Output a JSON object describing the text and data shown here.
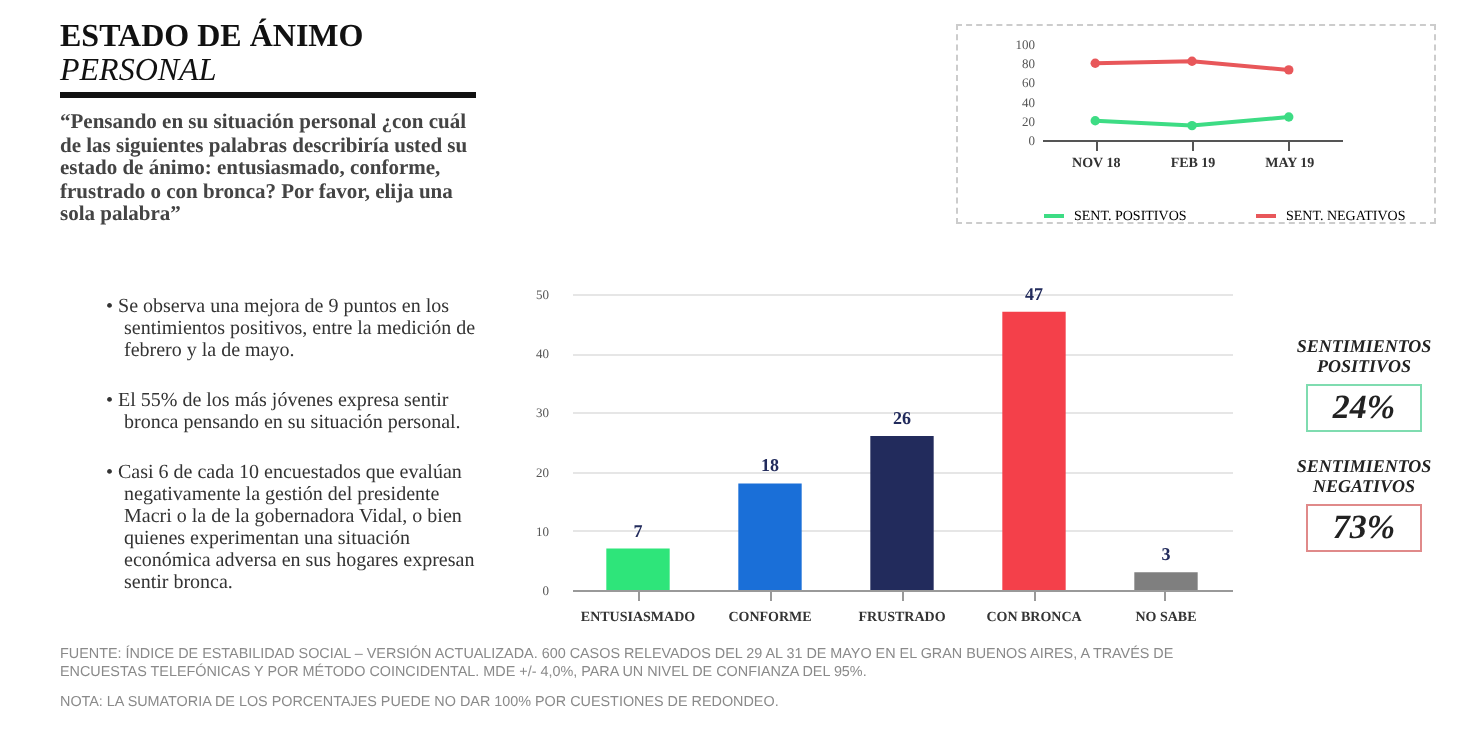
{
  "chart_data": [
    {
      "type": "other",
      "title": "ESTADO DE ÁNIMO",
      "subtitle": "PERSONAL",
      "annotations": [
        "“Pensando en su situación personal ¿con cuál de las siguientes palabras describiría usted su estado de ánimo: entusiasmado, conforme, frustrado o con bronca? Por favor, elija una sola palabra”",
        "• Se observa una mejora de 9 puntos en los sentimientos positivos, entre la medición de febrero y la de mayo.",
        "• El 55% de los más jóvenes expresa sentir bronca pensando en su situación personal.",
        "• Casi 6 de cada 10 encuestados que evalúan negativamente la gestión del presidente Macri o la de la gobernadora Vidal, o bien quienes experimentan una situación económica adversa en sus hogares expresan sentir bronca."
      ]
    },
    {
      "type": "line",
      "categories": [
        "NOV 18",
        "FEB 19",
        "MAY 19"
      ],
      "ylim": [
        0,
        100
      ],
      "yticks": [
        0,
        20,
        40,
        60,
        80,
        100
      ],
      "legend": "bottom",
      "marker": "circle",
      "series": [
        {
          "name": "SENT. POSITIVOS",
          "color": "#3ddc84",
          "values": [
            20,
            15,
            24
          ]
        },
        {
          "name": "SENT. NEGATIVOS",
          "color": "#e8575a",
          "values": [
            80,
            82,
            73
          ]
        }
      ]
    },
    {
      "type": "bar",
      "categories": [
        "ENTUSIASMADO",
        "CONFORME",
        "FRUSTRADO",
        "CON BRONCA",
        "NO SABE"
      ],
      "values": [
        7,
        18,
        26,
        47,
        3
      ],
      "colors": [
        "#2ee57a",
        "#1a6fd8",
        "#222b5c",
        "#f4404a",
        "#7f7f7f"
      ],
      "ylim": [
        0,
        50
      ],
      "yticks": [
        0,
        10,
        20,
        30,
        40,
        50
      ],
      "grid": "y",
      "data_labels": true,
      "annotations": [
        "FUENTE: ÍNDICE DE ESTABILIDAD SOCIAL – VERSIÓN ACTUALIZADA. 600 CASOS RELEVADOS DEL 29 AL 31 DE MAYO EN EL GRAN BUENOS AIRES, A TRAVÉS DE ENCUESTAS TELEFÓNICAS Y POR MÉTODO COINCIDENTAL. MDE +/- 4,0%, PARA UN NIVEL DE CONFIANZA DEL 95%.",
        "NOTA: LA SUMATORIA DE LOS PORCENTAJES PUEDE NO DAR 100% POR CUESTIONES DE REDONDEO."
      ]
    },
    {
      "type": "other",
      "annotations": [
        "SENTIMIENTOS POSITIVOS",
        "24%",
        "SENTIMIENTOS NEGATIVOS",
        "73%"
      ]
    }
  ]
}
